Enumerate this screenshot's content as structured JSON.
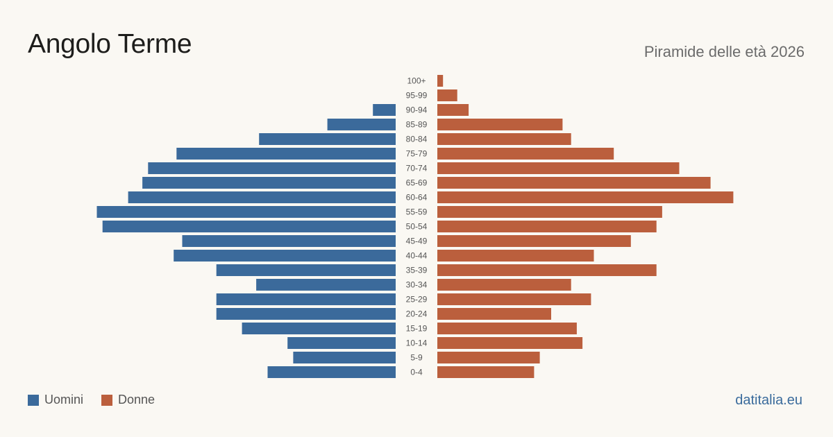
{
  "header": {
    "title": "Angolo Terme",
    "subtitle": "Piramide delle età 2026"
  },
  "footer": {
    "source": "datitalia.eu"
  },
  "colors": {
    "men": "#3b6a9b",
    "women": "#bb5f3d",
    "age_label": "#555555"
  },
  "chart_data": {
    "type": "bar",
    "orientation": "horizontal-pyramid",
    "categories": [
      "100+",
      "95-99",
      "90-94",
      "85-89",
      "80-84",
      "75-79",
      "70-74",
      "65-69",
      "60-64",
      "55-59",
      "50-54",
      "45-49",
      "40-44",
      "35-39",
      "30-34",
      "25-29",
      "20-24",
      "15-19",
      "10-14",
      "5-9",
      "0-4"
    ],
    "series": [
      {
        "name": "Uomini",
        "side": "left",
        "values": [
          0,
          0,
          8,
          24,
          48,
          77,
          87,
          89,
          94,
          105,
          103,
          75,
          78,
          63,
          49,
          63,
          63,
          54,
          38,
          36,
          45
        ]
      },
      {
        "name": "Donne",
        "side": "right",
        "values": [
          2,
          7,
          11,
          44,
          47,
          62,
          85,
          96,
          104,
          79,
          77,
          68,
          55,
          77,
          47,
          54,
          40,
          49,
          51,
          36,
          34
        ]
      }
    ],
    "xlim": [
      0,
      105
    ],
    "legend": "bottom-left"
  }
}
